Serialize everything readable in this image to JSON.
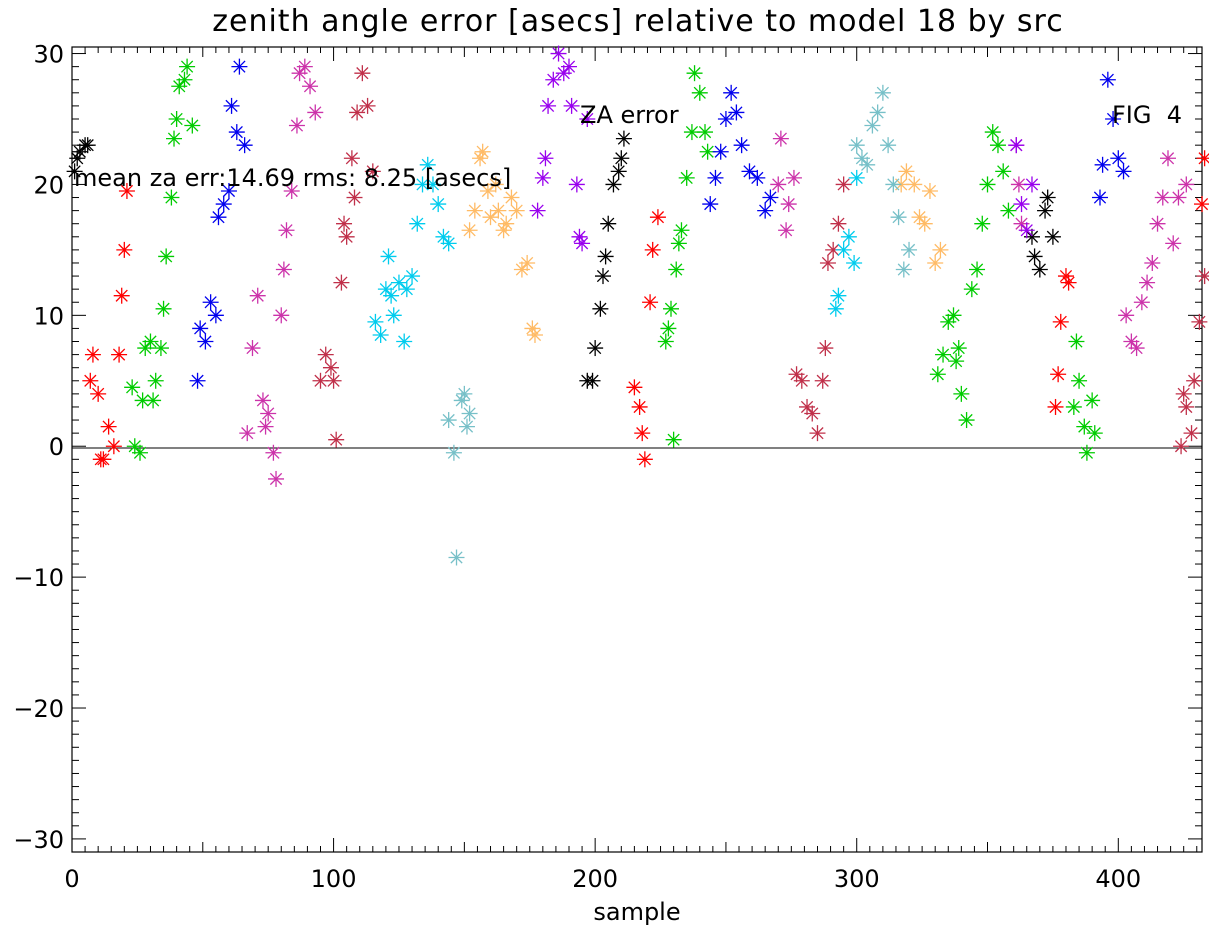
{
  "chart_data": {
    "type": "scatter",
    "title": "zenith angle error [asecs] relative to model 18 by src",
    "xlabel": "sample",
    "ylabel": "",
    "xlim": [
      0,
      432
    ],
    "ylim": [
      -31,
      30.5
    ],
    "xticks": [
      0,
      100,
      200,
      300,
      400
    ],
    "xtick_labels": [
      "0",
      "100",
      "200",
      "300",
      "400"
    ],
    "yticks": [
      -30,
      -20,
      -10,
      0,
      10,
      20,
      30
    ],
    "ytick_labels": [
      "−30",
      "−20",
      "−10",
      "0",
      "10",
      "20",
      "30"
    ],
    "zero_line": 0,
    "grid": false,
    "annotations": {
      "za_error": "ZA error",
      "fig": "FIG  4",
      "stats": "mean za err:14.69 rms: 8.25 [asecs]"
    },
    "marker": "asterisk",
    "series": [
      {
        "color": "#000000",
        "points": [
          [
            1,
            21
          ],
          [
            2,
            22
          ],
          [
            3,
            22.5
          ],
          [
            5,
            23
          ],
          [
            6,
            23
          ],
          [
            197,
            5
          ],
          [
            199,
            5
          ],
          [
            200,
            7.5
          ],
          [
            202,
            10.5
          ],
          [
            203,
            13
          ],
          [
            204,
            14.5
          ],
          [
            205,
            17
          ],
          [
            207,
            20
          ],
          [
            209,
            21
          ],
          [
            210,
            22
          ],
          [
            211,
            23.5
          ],
          [
            367,
            16
          ],
          [
            368,
            14.5
          ],
          [
            370,
            13.5
          ],
          [
            372,
            18
          ],
          [
            373,
            19
          ],
          [
            375,
            16
          ]
        ]
      },
      {
        "color": "#ff0000",
        "points": [
          [
            7,
            5
          ],
          [
            8,
            7
          ],
          [
            10,
            4
          ],
          [
            11,
            -1
          ],
          [
            12,
            -1
          ],
          [
            14,
            1.5
          ],
          [
            16,
            0
          ],
          [
            18,
            7
          ],
          [
            19,
            11.5
          ],
          [
            20,
            15
          ],
          [
            21,
            19.5
          ],
          [
            215,
            4.5
          ],
          [
            217,
            3
          ],
          [
            218,
            1
          ],
          [
            219,
            -1
          ],
          [
            221,
            11
          ],
          [
            222,
            15
          ],
          [
            224,
            17.5
          ],
          [
            376,
            3
          ],
          [
            377,
            5.5
          ],
          [
            378,
            9.5
          ],
          [
            380,
            13
          ],
          [
            381,
            12.5
          ],
          [
            432,
            18.5
          ],
          [
            433,
            22
          ]
        ]
      },
      {
        "color": "#00cc00",
        "points": [
          [
            23,
            4.5
          ],
          [
            24,
            0
          ],
          [
            26,
            -0.5
          ],
          [
            27,
            3.5
          ],
          [
            28,
            7.5
          ],
          [
            30,
            8
          ],
          [
            31,
            3.5
          ],
          [
            32,
            5
          ],
          [
            34,
            7.5
          ],
          [
            35,
            10.5
          ],
          [
            36,
            14.5
          ],
          [
            38,
            19
          ],
          [
            39,
            23.5
          ],
          [
            40,
            25
          ],
          [
            41,
            27.5
          ],
          [
            43,
            28
          ],
          [
            44,
            29
          ],
          [
            46,
            24.5
          ],
          [
            227,
            8
          ],
          [
            228,
            9
          ],
          [
            229,
            10.5
          ],
          [
            230,
            0.5
          ],
          [
            231,
            13.5
          ],
          [
            232,
            15.5
          ],
          [
            233,
            16.5
          ],
          [
            235,
            20.5
          ],
          [
            237,
            24
          ],
          [
            238,
            28.5
          ],
          [
            240,
            27
          ],
          [
            242,
            24
          ],
          [
            243,
            22.5
          ],
          [
            331,
            5.5
          ],
          [
            333,
            7
          ],
          [
            335,
            9.5
          ],
          [
            337,
            10
          ],
          [
            338,
            6.5
          ],
          [
            339,
            7.5
          ],
          [
            340,
            4
          ],
          [
            342,
            2
          ],
          [
            344,
            12
          ],
          [
            346,
            13.5
          ],
          [
            348,
            17
          ],
          [
            350,
            20
          ],
          [
            352,
            24
          ],
          [
            354,
            23
          ],
          [
            356,
            21
          ],
          [
            358,
            18
          ],
          [
            383,
            3
          ],
          [
            384,
            8
          ],
          [
            385,
            5
          ],
          [
            387,
            1.5
          ],
          [
            388,
            -0.5
          ],
          [
            390,
            3.5
          ],
          [
            391,
            1
          ]
        ]
      },
      {
        "color": "#0000ee",
        "points": [
          [
            48,
            5
          ],
          [
            49,
            9
          ],
          [
            51,
            8
          ],
          [
            53,
            11
          ],
          [
            55,
            10
          ],
          [
            56,
            17.5
          ],
          [
            58,
            18.5
          ],
          [
            60,
            19.5
          ],
          [
            61,
            26
          ],
          [
            63,
            24
          ],
          [
            64,
            29
          ],
          [
            66,
            23
          ],
          [
            244,
            18.5
          ],
          [
            246,
            20.5
          ],
          [
            248,
            22.5
          ],
          [
            250,
            25
          ],
          [
            252,
            27
          ],
          [
            254,
            25.5
          ],
          [
            256,
            23
          ],
          [
            259,
            21
          ],
          [
            262,
            20.5
          ],
          [
            265,
            18
          ],
          [
            267,
            19
          ],
          [
            393,
            19
          ],
          [
            394,
            21.5
          ],
          [
            396,
            28
          ],
          [
            398,
            25
          ],
          [
            400,
            22
          ],
          [
            402,
            21
          ]
        ]
      },
      {
        "color": "#cc33aa",
        "points": [
          [
            67,
            1
          ],
          [
            69,
            7.5
          ],
          [
            71,
            11.5
          ],
          [
            73,
            3.5
          ],
          [
            74,
            1.5
          ],
          [
            75,
            2.5
          ],
          [
            77,
            -0.5
          ],
          [
            78,
            -2.5
          ],
          [
            80,
            10
          ],
          [
            81,
            13.5
          ],
          [
            82,
            16.5
          ],
          [
            84,
            19.5
          ],
          [
            86,
            24.5
          ],
          [
            87,
            28.5
          ],
          [
            89,
            29
          ],
          [
            91,
            27.5
          ],
          [
            93,
            25.5
          ],
          [
            270,
            20
          ],
          [
            271,
            23.5
          ],
          [
            273,
            16.5
          ],
          [
            274,
            18.5
          ],
          [
            276,
            20.5
          ],
          [
            361,
            23
          ],
          [
            362,
            20
          ],
          [
            363,
            17
          ],
          [
            403,
            10
          ],
          [
            405,
            8
          ],
          [
            407,
            7.5
          ],
          [
            409,
            11
          ],
          [
            411,
            12.5
          ],
          [
            413,
            14
          ],
          [
            415,
            17
          ],
          [
            417,
            19
          ],
          [
            419,
            22
          ],
          [
            421,
            15.5
          ],
          [
            423,
            19
          ],
          [
            426,
            20
          ]
        ]
      },
      {
        "color": "#c0304a",
        "points": [
          [
            95,
            5
          ],
          [
            97,
            7
          ],
          [
            99,
            6
          ],
          [
            100,
            5
          ],
          [
            101,
            0.5
          ],
          [
            103,
            12.5
          ],
          [
            104,
            17
          ],
          [
            105,
            16
          ],
          [
            107,
            22
          ],
          [
            108,
            19
          ],
          [
            109,
            25.5
          ],
          [
            111,
            28.5
          ],
          [
            113,
            26
          ],
          [
            115,
            21
          ],
          [
            277,
            5.5
          ],
          [
            279,
            5
          ],
          [
            281,
            3
          ],
          [
            283,
            2.5
          ],
          [
            285,
            1
          ],
          [
            287,
            5
          ],
          [
            288,
            7.5
          ],
          [
            289,
            14
          ],
          [
            291,
            15
          ],
          [
            293,
            17
          ],
          [
            295,
            20
          ],
          [
            424,
            0
          ],
          [
            425,
            4
          ],
          [
            426,
            3
          ],
          [
            428,
            1
          ],
          [
            429,
            5
          ],
          [
            431,
            9.5
          ],
          [
            433,
            13
          ]
        ]
      },
      {
        "color": "#00ccee",
        "points": [
          [
            116,
            9.5
          ],
          [
            118,
            8.5
          ],
          [
            120,
            12
          ],
          [
            121,
            14.5
          ],
          [
            122,
            11.5
          ],
          [
            123,
            10
          ],
          [
            125,
            12.5
          ],
          [
            127,
            8
          ],
          [
            128,
            12
          ],
          [
            130,
            13
          ],
          [
            132,
            17
          ],
          [
            134,
            20
          ],
          [
            136,
            21.5
          ],
          [
            138,
            20
          ],
          [
            140,
            18.5
          ],
          [
            142,
            16
          ],
          [
            144,
            15.5
          ],
          [
            292,
            10.5
          ],
          [
            293,
            11.5
          ],
          [
            295,
            15
          ],
          [
            297,
            16
          ],
          [
            299,
            14
          ],
          [
            300,
            20.5
          ]
        ]
      },
      {
        "color": "#ffbb66",
        "points": [
          [
            152,
            16.5
          ],
          [
            154,
            18
          ],
          [
            156,
            22
          ],
          [
            157,
            22.5
          ],
          [
            159,
            19.5
          ],
          [
            160,
            17.5
          ],
          [
            162,
            20
          ],
          [
            163,
            18
          ],
          [
            165,
            16.5
          ],
          [
            166,
            17
          ],
          [
            168,
            19
          ],
          [
            170,
            18
          ],
          [
            172,
            13.5
          ],
          [
            174,
            14
          ],
          [
            176,
            9
          ],
          [
            177,
            8.5
          ],
          [
            317,
            20
          ],
          [
            319,
            21
          ],
          [
            322,
            20
          ],
          [
            324,
            17.5
          ],
          [
            326,
            17
          ],
          [
            328,
            19.5
          ],
          [
            330,
            14
          ],
          [
            332,
            15
          ]
        ]
      },
      {
        "color": "#9900ee",
        "points": [
          [
            178,
            18
          ],
          [
            180,
            20.5
          ],
          [
            181,
            22
          ],
          [
            182,
            26
          ],
          [
            184,
            28
          ],
          [
            186,
            30
          ],
          [
            188,
            28.5
          ],
          [
            190,
            29
          ],
          [
            191,
            26
          ],
          [
            193,
            20
          ],
          [
            194,
            16
          ],
          [
            195,
            15.5
          ],
          [
            197,
            25
          ],
          [
            361,
            23
          ],
          [
            363,
            18.5
          ],
          [
            365,
            16.5
          ],
          [
            367,
            20
          ]
        ]
      },
      {
        "color": "#77c0c8",
        "points": [
          [
            144,
            2
          ],
          [
            146,
            -0.5
          ],
          [
            147,
            -8.5
          ],
          [
            149,
            3.5
          ],
          [
            150,
            4
          ],
          [
            151,
            1.5
          ],
          [
            152,
            2.5
          ],
          [
            300,
            23
          ],
          [
            302,
            22
          ],
          [
            304,
            21.5
          ],
          [
            306,
            24.5
          ],
          [
            308,
            25.5
          ],
          [
            310,
            27
          ],
          [
            312,
            23
          ],
          [
            314,
            20
          ],
          [
            316,
            17.5
          ],
          [
            318,
            13.5
          ],
          [
            320,
            15
          ]
        ]
      }
    ]
  }
}
